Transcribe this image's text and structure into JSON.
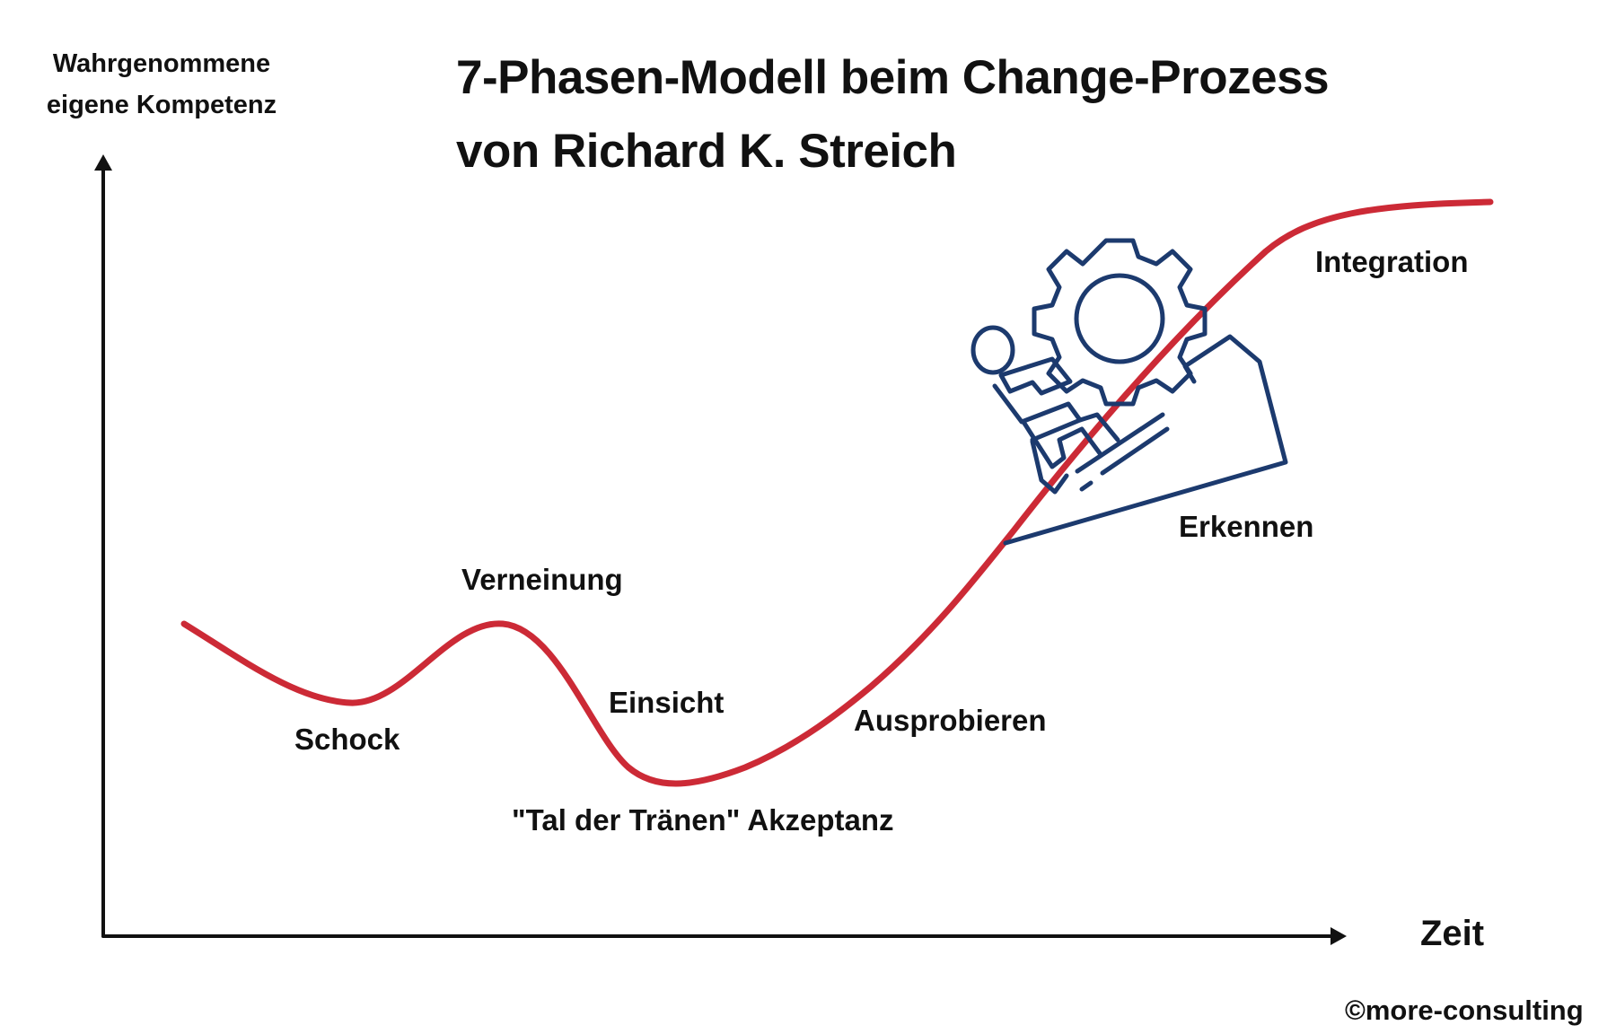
{
  "title": {
    "line1": "7-Phasen-Modell beim Change-Prozess",
    "line2": "von Richard K. Streich"
  },
  "axes": {
    "y_label_line1": "Wahrgenommene",
    "y_label_line2": "eigene Kompetenz",
    "x_label": "Zeit"
  },
  "phases": [
    {
      "id": "schock",
      "label": "Schock"
    },
    {
      "id": "verneinung",
      "label": "Verneinung"
    },
    {
      "id": "einsicht",
      "label": "Einsicht"
    },
    {
      "id": "akzeptanz",
      "label": "\"Tal der Tränen\" Akzeptanz"
    },
    {
      "id": "ausprobieren",
      "label": "Ausprobieren"
    },
    {
      "id": "erkennen",
      "label": "Erkennen"
    },
    {
      "id": "integration",
      "label": "Integration"
    }
  ],
  "illustration": {
    "icon": "person-pushing-gear-uphill-icon"
  },
  "copyright": "©more-consulting",
  "colors": {
    "curve": "#cc2a36",
    "axes": "#111111",
    "illustration": "#1c3a6e",
    "text": "#111111"
  }
}
